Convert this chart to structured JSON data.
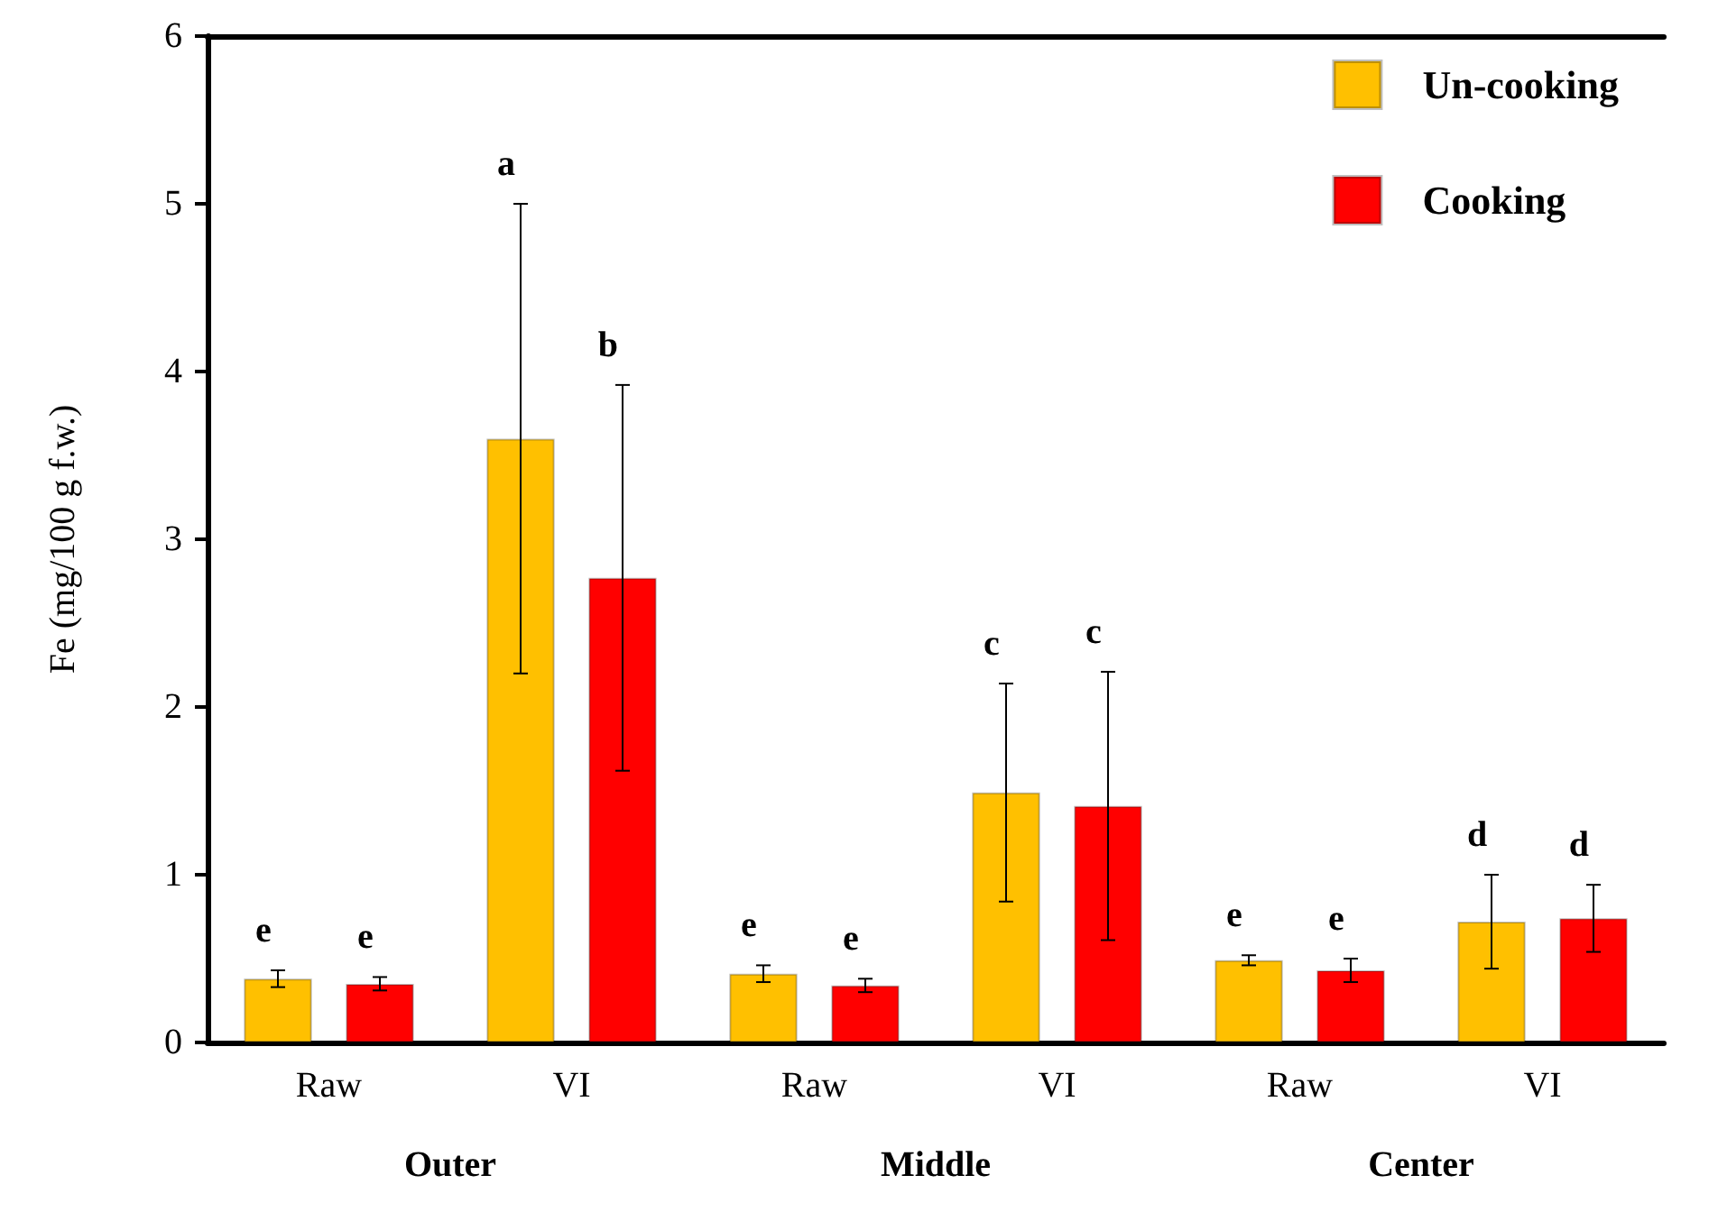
{
  "chart_data": {
    "type": "bar",
    "ylabel": "Fe (mg/100 g f.w.)",
    "categories": [
      "Raw",
      "VI",
      "Raw",
      "VI",
      "Raw",
      "VI"
    ],
    "annotations": [
      "e",
      "a",
      "e",
      "c",
      "e",
      "d",
      "e",
      "b",
      "e",
      "c",
      "e",
      "d",
      "Outer",
      "Middle",
      "Center"
    ],
    "series": [
      {
        "name": "Un-cooking",
        "color": "#ffc000",
        "values": [
          0.38,
          3.6,
          0.41,
          1.49,
          0.49,
          0.72
        ],
        "errors": [
          0.05,
          1.4,
          0.05,
          0.65,
          0.03,
          0.28
        ]
      },
      {
        "name": "Cooking",
        "color": "#ff0000",
        "values": [
          0.35,
          2.77,
          0.34,
          1.41,
          0.43,
          0.74
        ],
        "errors": [
          0.04,
          1.15,
          0.04,
          0.8,
          0.07,
          0.2
        ]
      }
    ],
    "ylim": [
      0,
      6
    ],
    "yticks": [
      0,
      1,
      2,
      3,
      4,
      5,
      6
    ],
    "grid": false,
    "legend": "top right"
  }
}
